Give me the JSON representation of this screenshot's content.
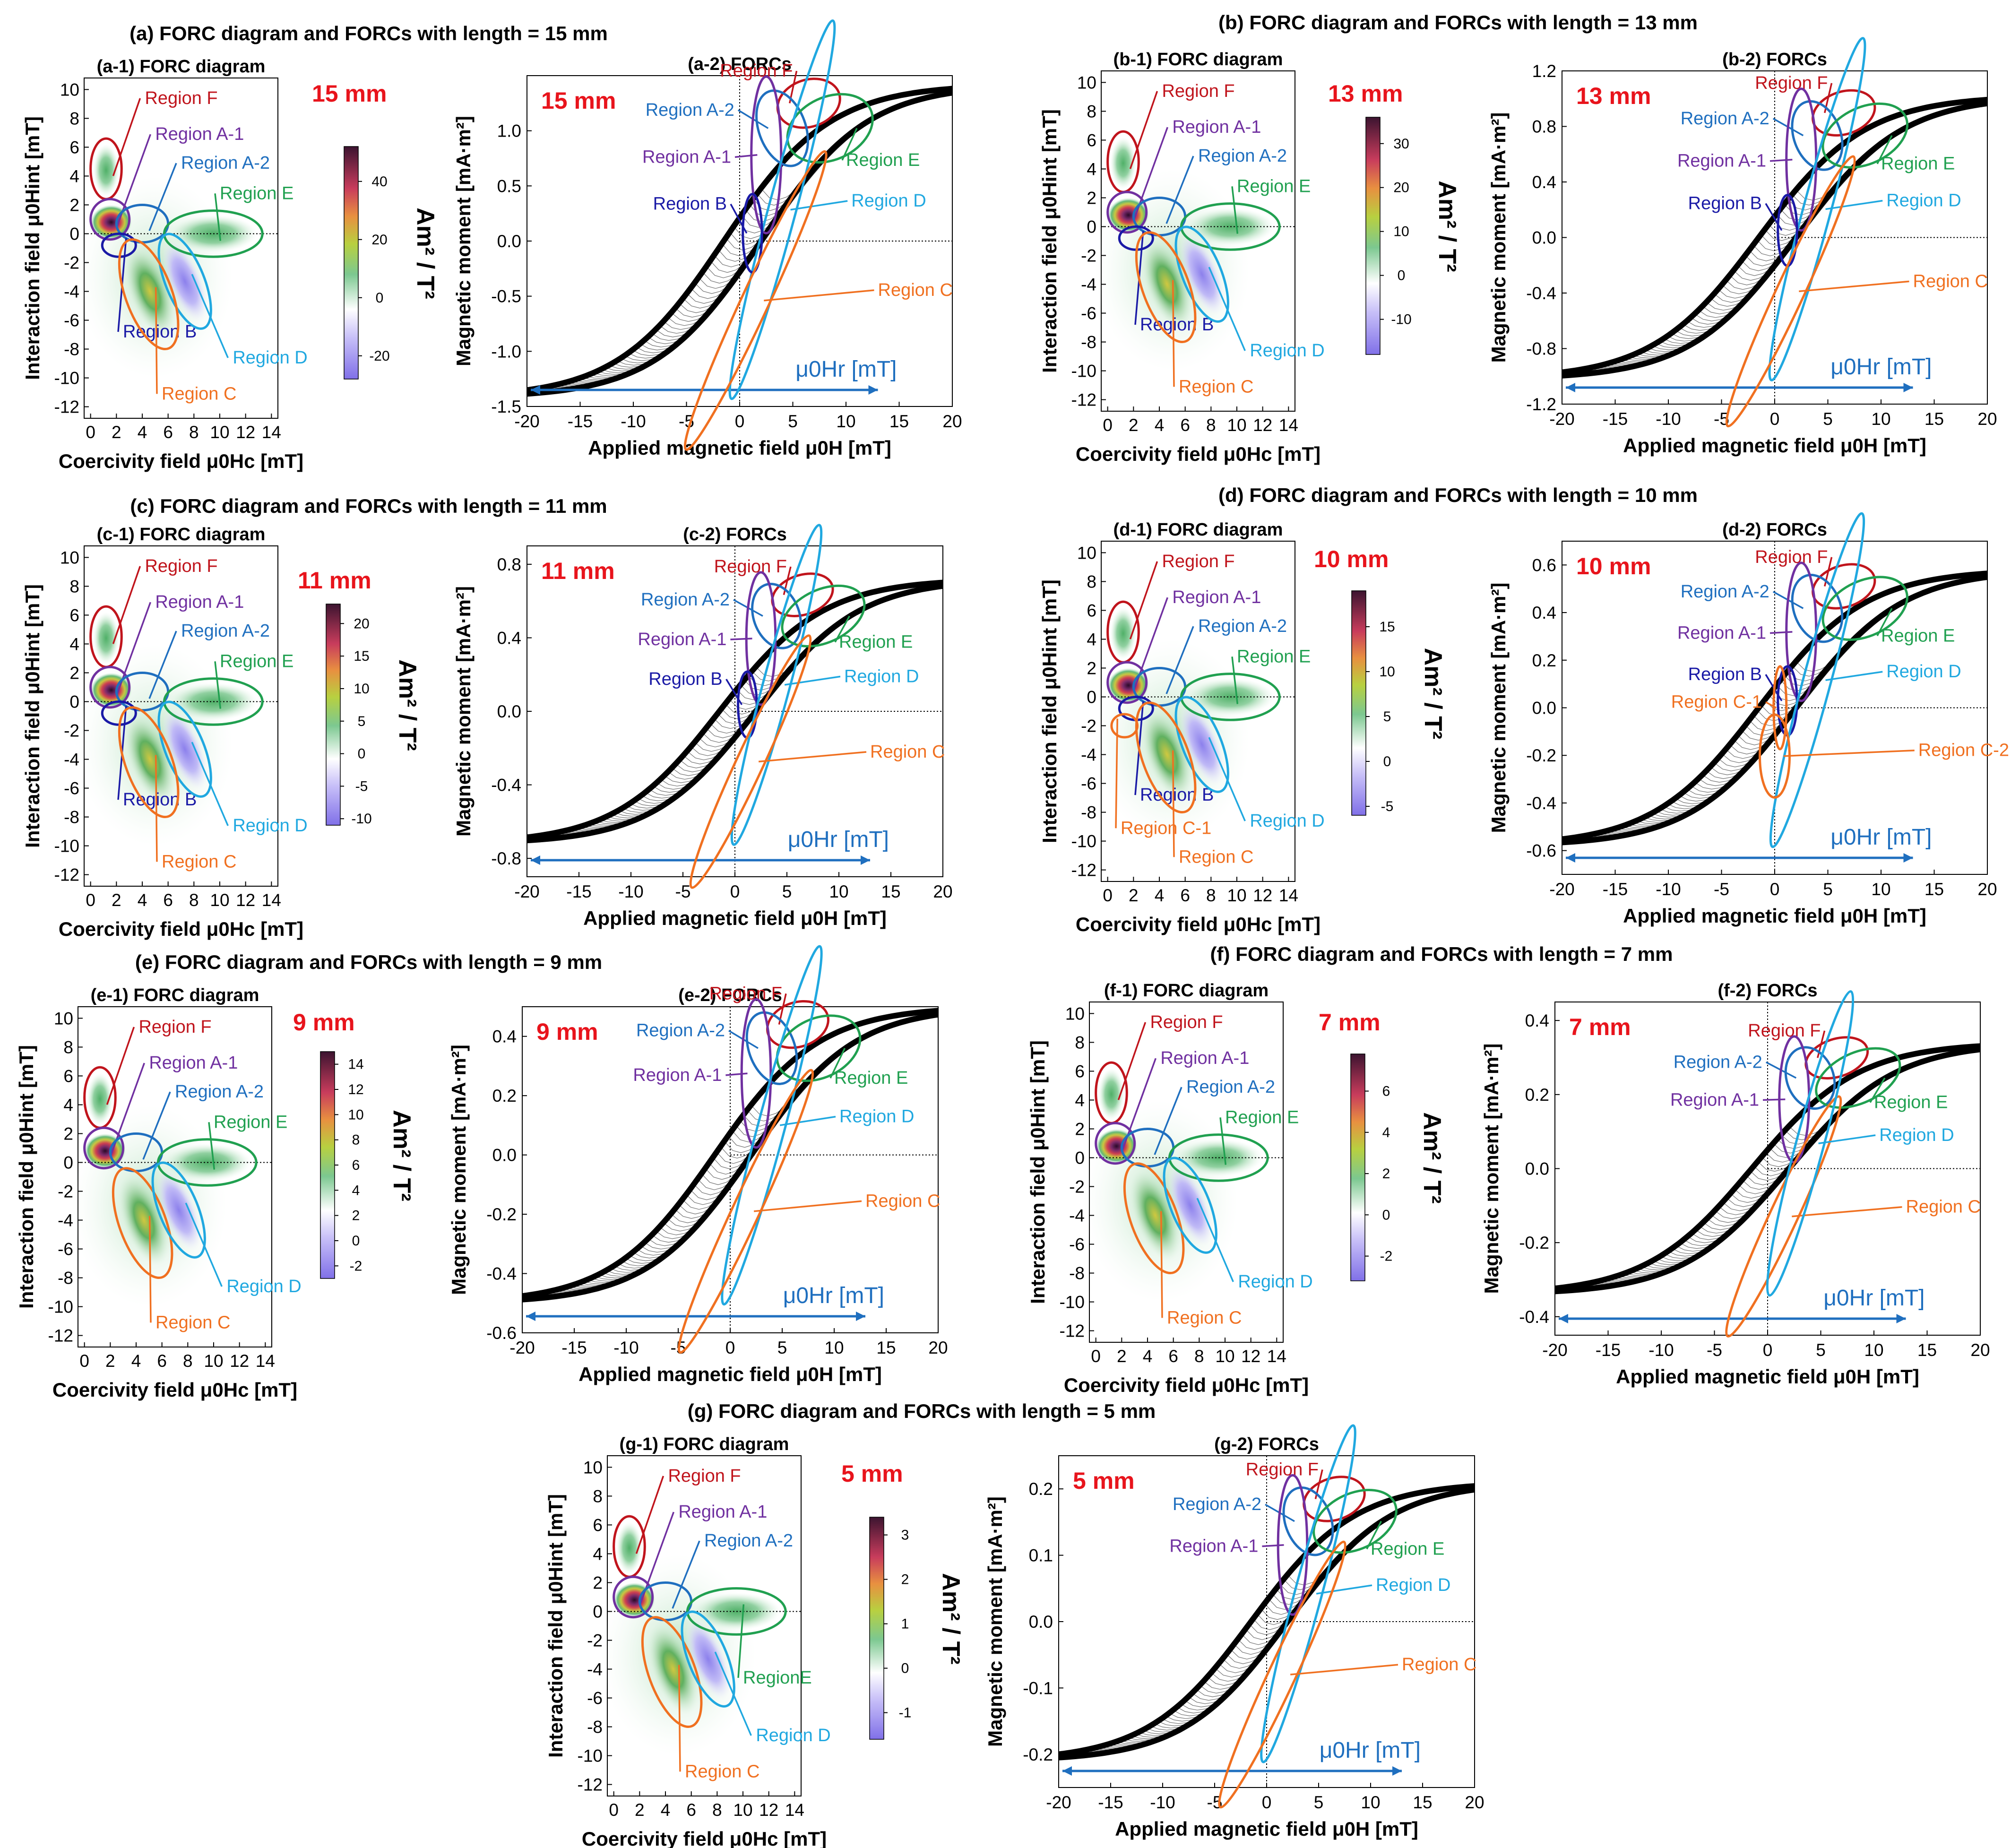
{
  "colors": {
    "region_F": "#c0141c",
    "region_A1": "#7030a0",
    "region_A2": "#1f6fbf",
    "region_B": "#1a1aa6",
    "region_C": "#f07020",
    "region_D": "#20a8e0",
    "region_E": "#20a050",
    "length_label": "#e8141c",
    "hr_arrow": "#1f6fbf"
  },
  "common": {
    "forc_title_suffix": "FORC diagram",
    "forcs_title_suffix": "FORCs",
    "forc_xlabel": "Coercivity field μ0Hc [mT]",
    "forc_ylabel": "Interaction field μ0Hint [mT]",
    "forcs_xlabel": "Applied magnetic field μ0H [mT]",
    "forcs_ylabel": "Magnetic moment [mA·m²]",
    "colorbar_unit": "Am² / T²",
    "hr_label": "μ0Hr [mT]",
    "forc_xticks": [
      0,
      2,
      4,
      6,
      8,
      10,
      12,
      14
    ],
    "forc_yticks": [
      10,
      8,
      6,
      4,
      2,
      0,
      -2,
      -4,
      -6,
      -8,
      -10,
      -12
    ],
    "forcs_xticks": [
      -20,
      -15,
      -10,
      -5,
      0,
      5,
      10,
      15,
      20
    ]
  },
  "chart_data": [
    {
      "id": "a",
      "type": "heatmap+line",
      "title": "(a) FORC diagram and FORCs with length = 15 mm",
      "length": "15 mm",
      "forc_title": "(a-1) FORC diagram",
      "forcs_title": "(a-2) FORCs",
      "colorbar_ticks": [
        "40",
        "20",
        "0",
        "-20"
      ],
      "colorbar_range": [
        -28,
        52
      ],
      "ylim": [
        -1.5,
        1.5
      ],
      "yticks": [
        "1.0",
        "0.5",
        "0.0",
        "-0.5",
        "-1.0",
        "-1.5"
      ],
      "m_max": 1.42,
      "forc_labels": [
        "Region F",
        "Region A-1",
        "Region A-2",
        "Region E",
        "Region B",
        "Region D",
        "Region C"
      ],
      "forcs_labels": [
        "Region F",
        "Region A-2",
        "Region E",
        "Region A-1",
        "Region D",
        "Region B",
        "Region C"
      ]
    },
    {
      "id": "b",
      "type": "heatmap+line",
      "title": "(b) FORC diagram and FORCs with length = 13 mm",
      "length": "13 mm",
      "forc_title": "(b-1) FORC diagram",
      "forcs_title": "(b-2) FORCs",
      "colorbar_ticks": [
        "30",
        "20",
        "10",
        "0",
        "-10"
      ],
      "colorbar_range": [
        -18,
        36
      ],
      "ylim": [
        -1.2,
        1.2
      ],
      "yticks": [
        "1.2",
        "0.8",
        "0.4",
        "0.0",
        "-0.4",
        "-0.8",
        "-1.2"
      ],
      "m_max": 1.02,
      "forc_labels": [
        "Region F",
        "Region A-1",
        "Region A-2",
        "Region E",
        "Region B",
        "Region D",
        "Region C"
      ],
      "forcs_labels": [
        "Region F",
        "Region A-2",
        "Region E",
        "Region A-1",
        "Region D",
        "Region B",
        "Region C"
      ]
    },
    {
      "id": "c",
      "type": "heatmap+line",
      "title": "(c) FORC diagram and FORCs with length = 11 mm",
      "length": "11 mm",
      "forc_title": "(c-1) FORC diagram",
      "forcs_title": "(c-2) FORCs",
      "colorbar_ticks": [
        "20",
        "15",
        "10",
        "5",
        "0",
        "-5",
        "-10"
      ],
      "colorbar_range": [
        -11,
        23
      ],
      "ylim": [
        -0.9,
        0.9
      ],
      "yticks": [
        "0.8",
        "0.4",
        "0.0",
        "-0.4",
        "-0.8"
      ],
      "m_max": 0.72,
      "forc_labels": [
        "Region F",
        "Region A-1",
        "Region A-2",
        "Region E",
        "Region B",
        "Region D",
        "Region C"
      ],
      "forcs_labels": [
        "Region F",
        "Region A-2",
        "Region A-1",
        "Region E",
        "Region B",
        "Region D",
        "Region C"
      ]
    },
    {
      "id": "d",
      "type": "heatmap+line",
      "title": "(d) FORC diagram and FORCs with length = 10 mm",
      "length": "10 mm",
      "forc_title": "(d-1) FORC diagram",
      "forcs_title": "(d-2) FORCs",
      "colorbar_ticks": [
        "15",
        "10",
        "5",
        "0",
        "-5"
      ],
      "colorbar_range": [
        -6,
        19
      ],
      "ylim": [
        -0.7,
        0.7
      ],
      "yticks": [
        "0.6",
        "0.4",
        "0.2",
        "0.0",
        "-0.2",
        "-0.4",
        "-0.6"
      ],
      "m_max": 0.58,
      "forc_labels": [
        "Region F",
        "Region A-1",
        "Region A-2",
        "Region E",
        "Region B",
        "Region C-1",
        "Region D",
        "Region C"
      ],
      "forcs_labels": [
        "Region F",
        "Region A-2",
        "Region E",
        "Region A-1",
        "Region B",
        "Region C-1",
        "Region D",
        "Region C-2"
      ]
    },
    {
      "id": "e",
      "type": "heatmap+line",
      "title": "(e) FORC diagram and FORCs with length = 9 mm",
      "length": "9 mm",
      "forc_title": "(e-1) FORC diagram",
      "forcs_title": "(e-2) FORCs",
      "colorbar_ticks": [
        "14",
        "12",
        "10",
        "8",
        "6",
        "4",
        "2",
        "0",
        "-2"
      ],
      "colorbar_range": [
        -3,
        15
      ],
      "ylim": [
        -0.6,
        0.5
      ],
      "yticks": [
        "0.4",
        "0.2",
        "0.0",
        "-0.2",
        "-0.4",
        "-0.6"
      ],
      "m_max": 0.5,
      "forc_labels": [
        "Region F",
        "Region A-1",
        "Region A-2",
        "Region E",
        "Region C",
        "Region D"
      ],
      "forcs_labels": [
        "Region F",
        "Region A-2",
        "Region E",
        "Region A-1",
        "Region D",
        "Region C"
      ]
    },
    {
      "id": "f",
      "type": "heatmap+line",
      "title": "(f) FORC diagram and FORCs with length = 7 mm",
      "length": "7 mm",
      "forc_title": "(f-1) FORC diagram",
      "forcs_title": "(f-2) FORCs",
      "colorbar_ticks": [
        "6",
        "4",
        "2",
        "0",
        "-2"
      ],
      "colorbar_range": [
        -3.2,
        7.8
      ],
      "ylim": [
        -0.45,
        0.45
      ],
      "yticks": [
        "0.4",
        "0.2",
        "0.0",
        "-0.2",
        "-0.4"
      ],
      "m_max": 0.34,
      "forc_labels": [
        "Region F",
        "Region A-1",
        "Region A-2",
        "Region E",
        "Region C",
        "Region D"
      ],
      "forcs_labels": [
        "Region F",
        "Region A-2",
        "Region A-1",
        "Region E",
        "Region C",
        "Region D"
      ]
    },
    {
      "id": "g",
      "type": "heatmap+line",
      "title": "(g) FORC diagram and FORCs with length = 5 mm",
      "length": "5 mm",
      "forc_title": "(g-1) FORC diagram",
      "forcs_title": "(g-2) FORCs",
      "colorbar_ticks": [
        "3",
        "2",
        "1",
        "0",
        "-1"
      ],
      "colorbar_range": [
        -1.6,
        3.4
      ],
      "ylim": [
        -0.25,
        0.25
      ],
      "yticks": [
        "0.2",
        "0.1",
        "0.0",
        "-0.1",
        "-0.2"
      ],
      "m_max": 0.21,
      "forc_labels": [
        "Region F",
        "Region A-1",
        "Region A-2",
        "RegionE",
        "Region C",
        "Region D"
      ],
      "forcs_labels": [
        "Region F",
        "Region A-2",
        "Region A-1",
        "Region E",
        "Region D",
        "Region C"
      ]
    }
  ]
}
